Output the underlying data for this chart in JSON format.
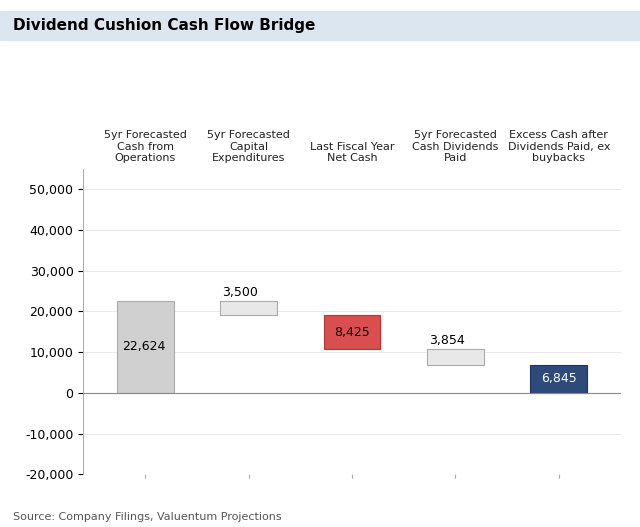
{
  "title": "Dividend Cushion Cash Flow Bridge",
  "title_bg_color": "#dce6f1",
  "title_fontsize": 11,
  "title_fontweight": "bold",
  "categories": [
    "5yr Forecasted\nCash from\nOperations",
    "5yr Forecasted\nCapital\nExpenditures",
    "Last Fiscal Year\nNet Cash",
    "5yr Forecasted\nCash Dividends\nPaid",
    "Excess Cash after\nDividends Paid, ex\nbuybacks"
  ],
  "values": [
    22624,
    3500,
    8425,
    3854,
    6845
  ],
  "bar_bottoms": [
    0,
    19124,
    10699,
    6845,
    0
  ],
  "bar_colors": [
    "#d0d0d0",
    "#e8e8e8",
    "#d94f4f",
    "#e8e8e8",
    "#2d4a7a"
  ],
  "bar_edgecolors": [
    "#aaaaaa",
    "#aaaaaa",
    "#b83333",
    "#aaaaaa",
    "#1e3460"
  ],
  "value_labels": [
    "22,624",
    "3,500",
    "8,425",
    "3,854",
    "6,845"
  ],
  "label_offsets": [
    -1,
    1,
    -1,
    1,
    -1
  ],
  "ylim": [
    -20000,
    55000
  ],
  "yticks": [
    -20000,
    -10000,
    0,
    10000,
    20000,
    30000,
    40000,
    50000
  ],
  "source_text": "Source: Company Filings, Valuentum Projections",
  "source_fontsize": 8,
  "bar_width": 0.55,
  "label_fontsize": 9,
  "bg_color": "#ffffff",
  "grid_color": "#e0e0e0",
  "header_label_fontsize": 8,
  "tick_label_fontsize": 9
}
